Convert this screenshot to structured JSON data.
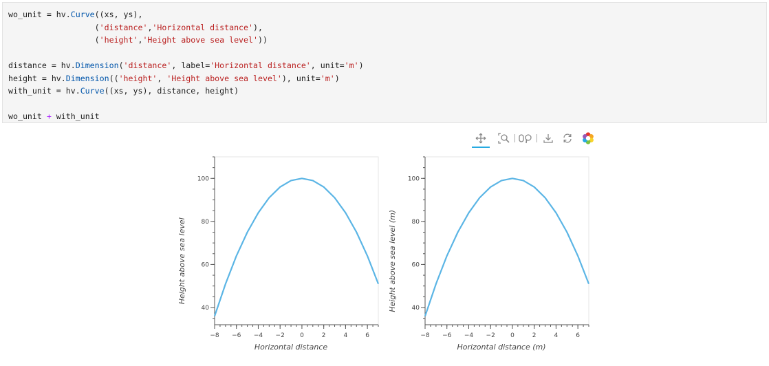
{
  "code_cell": {
    "lines": [
      [
        {
          "t": "wo_unit = hv."
        },
        {
          "t": "Curve",
          "c": "fn"
        },
        {
          "t": "((xs, ys),"
        }
      ],
      [
        {
          "t": "                  ("
        },
        {
          "t": "'distance'",
          "c": "str"
        },
        {
          "t": ","
        },
        {
          "t": "'Horizontal distance'",
          "c": "str"
        },
        {
          "t": "),"
        }
      ],
      [
        {
          "t": "                  ("
        },
        {
          "t": "'height'",
          "c": "str"
        },
        {
          "t": ","
        },
        {
          "t": "'Height above sea level'",
          "c": "str"
        },
        {
          "t": "))"
        }
      ],
      [
        {
          "t": ""
        }
      ],
      [
        {
          "t": "distance = hv."
        },
        {
          "t": "Dimension",
          "c": "fn"
        },
        {
          "t": "("
        },
        {
          "t": "'distance'",
          "c": "str"
        },
        {
          "t": ", label="
        },
        {
          "t": "'Horizontal distance'",
          "c": "str"
        },
        {
          "t": ", unit="
        },
        {
          "t": "'m'",
          "c": "str"
        },
        {
          "t": ")"
        }
      ],
      [
        {
          "t": "height = hv."
        },
        {
          "t": "Dimension",
          "c": "fn"
        },
        {
          "t": "(("
        },
        {
          "t": "'height'",
          "c": "str"
        },
        {
          "t": ", "
        },
        {
          "t": "'Height above sea level'",
          "c": "str"
        },
        {
          "t": "), unit="
        },
        {
          "t": "'m'",
          "c": "str"
        },
        {
          "t": ")"
        }
      ],
      [
        {
          "t": "with_unit = hv."
        },
        {
          "t": "Curve",
          "c": "fn"
        },
        {
          "t": "((xs, ys), distance, height)"
        }
      ],
      [
        {
          "t": ""
        }
      ],
      [
        {
          "t": "wo_unit "
        },
        {
          "t": "+",
          "c": "op"
        },
        {
          "t": " with_unit"
        }
      ]
    ]
  },
  "toolbar": {
    "tools": [
      {
        "name": "pan-tool-icon",
        "active": true
      },
      {
        "name": "box-zoom-tool-icon",
        "active": false
      },
      {
        "name": "wheel-zoom-tool-icon",
        "active": false
      },
      {
        "name": "save-tool-icon",
        "active": false
      },
      {
        "name": "reset-tool-icon",
        "active": false
      },
      {
        "name": "bokeh-logo-icon",
        "active": false
      }
    ],
    "accent": "#26aae1"
  },
  "chart_data": [
    {
      "type": "line",
      "xlabel": "Horizontal distance",
      "ylabel": "Height above sea level",
      "xlim": [
        -8,
        7
      ],
      "ylim": [
        32,
        110
      ],
      "xticks": [
        -8,
        -6,
        -4,
        -2,
        0,
        2,
        4,
        6
      ],
      "xtick_labels": [
        "−8",
        "−6",
        "−4",
        "−2",
        "0",
        "2",
        "4",
        "6"
      ],
      "yticks": [
        40,
        60,
        80,
        100
      ],
      "ytick_labels": [
        "40",
        "60",
        "80",
        "100"
      ],
      "color": "#5bb5e5",
      "x": [
        -8,
        -7,
        -6,
        -5,
        -4,
        -3,
        -2,
        -1,
        0,
        1,
        2,
        3,
        4,
        5,
        6,
        7
      ],
      "y": [
        36,
        51,
        64,
        75,
        84,
        91,
        96,
        99,
        100,
        99,
        96,
        91,
        84,
        75,
        64,
        51
      ]
    },
    {
      "type": "line",
      "xlabel": "Horizontal distance (m)",
      "ylabel": "Height above sea level (m)",
      "xlim": [
        -8,
        7
      ],
      "ylim": [
        32,
        110
      ],
      "xticks": [
        -8,
        -6,
        -4,
        -2,
        0,
        2,
        4,
        6
      ],
      "xtick_labels": [
        "−8",
        "−6",
        "−4",
        "−2",
        "0",
        "2",
        "4",
        "6"
      ],
      "yticks": [
        40,
        60,
        80,
        100
      ],
      "ytick_labels": [
        "40",
        "60",
        "80",
        "100"
      ],
      "color": "#5bb5e5",
      "x": [
        -8,
        -7,
        -6,
        -5,
        -4,
        -3,
        -2,
        -1,
        0,
        1,
        2,
        3,
        4,
        5,
        6,
        7
      ],
      "y": [
        36,
        51,
        64,
        75,
        84,
        91,
        96,
        99,
        100,
        99,
        96,
        91,
        84,
        75,
        64,
        51
      ]
    }
  ]
}
